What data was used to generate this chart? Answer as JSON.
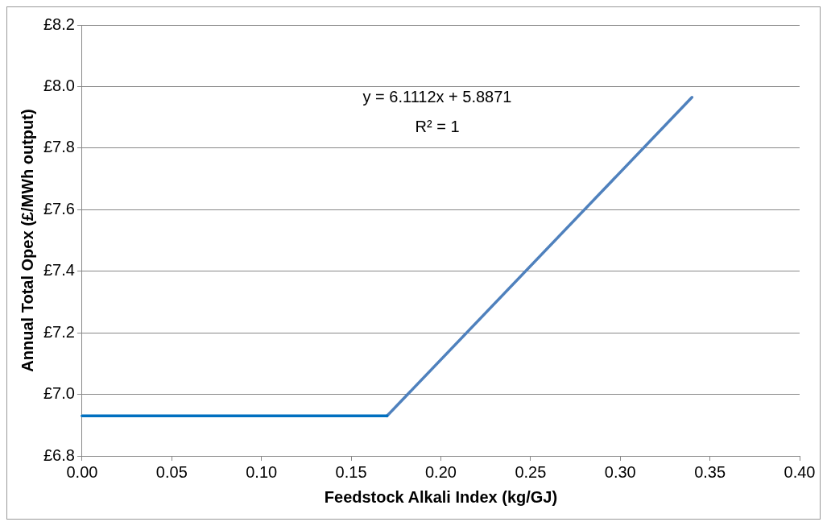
{
  "chart_data": {
    "type": "line",
    "xlabel": "Feedstock Alkali Index (kg/GJ)",
    "ylabel": "Annual Total Opex (£/MWh output)",
    "annotations": [
      "y = 6.1112x + 5.8871",
      "R² = 1"
    ],
    "series": [
      {
        "color": "#0070c0",
        "x": [
          0,
          0.17
        ],
        "values": [
          6.93,
          6.93
        ]
      },
      {
        "color": "#4f81bd",
        "x": [
          0.17,
          0.34
        ],
        "values": [
          6.93,
          7.965
        ]
      }
    ],
    "xlim": [
      0,
      0.4
    ],
    "xticks": [
      {
        "value": 0,
        "label": "0.00"
      },
      {
        "value": 0.05,
        "label": "0.05"
      },
      {
        "value": 0.1,
        "label": "0.10"
      },
      {
        "value": 0.15,
        "label": "0.15"
      },
      {
        "value": 0.2,
        "label": "0.20"
      },
      {
        "value": 0.25,
        "label": "0.25"
      },
      {
        "value": 0.3,
        "label": "0.30"
      },
      {
        "value": 0.35,
        "label": "0.35"
      },
      {
        "value": 0.4,
        "label": "0.40"
      }
    ],
    "ylim": [
      6.8,
      8.2
    ],
    "yticks": [
      {
        "value": 6.8,
        "label": "£6.8"
      },
      {
        "value": 7.0,
        "label": "£7.0"
      },
      {
        "value": 7.2,
        "label": "£7.2"
      },
      {
        "value": 7.4,
        "label": "£7.4"
      },
      {
        "value": 7.6,
        "label": "£7.6"
      },
      {
        "value": 7.8,
        "label": "£7.8"
      },
      {
        "value": 8.0,
        "label": "£8.0"
      },
      {
        "value": 8.2,
        "label": "£8.2"
      }
    ],
    "grid": "y",
    "legend": false,
    "marker": "none",
    "line_style": "solid"
  }
}
